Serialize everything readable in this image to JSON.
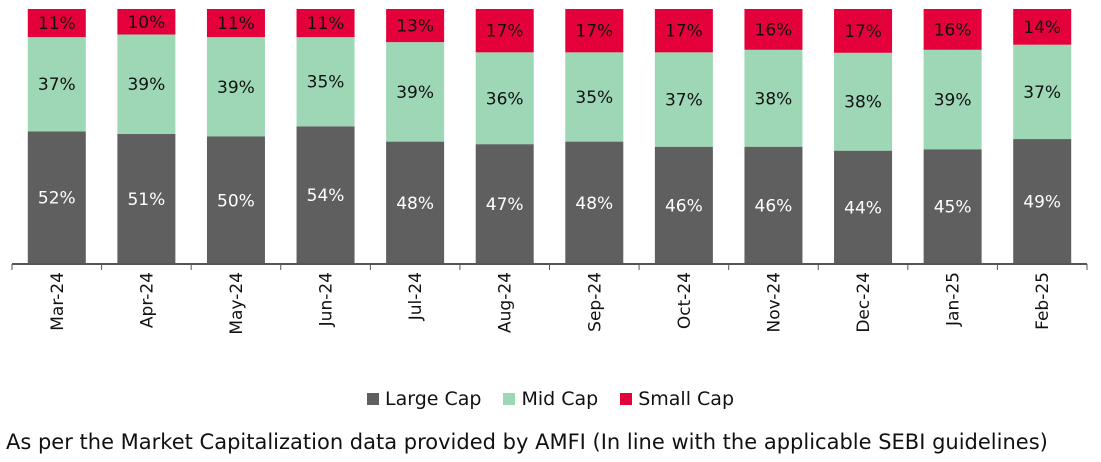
{
  "colors": {
    "large_cap": "#5f5f5f",
    "mid_cap": "#9dd7b6",
    "small_cap": "#e4003b",
    "axis": "#555555"
  },
  "legend": {
    "items": [
      {
        "label": "Large Cap",
        "color": "#5f5f5f"
      },
      {
        "label": "Mid Cap",
        "color": "#9dd7b6"
      },
      {
        "label": "Small Cap",
        "color": "#e4003b"
      }
    ]
  },
  "footnote": "As per the Market Capitalization data provided by AMFI (In line with the applicable SEBI guidelines)",
  "chart_data": {
    "type": "bar",
    "stacked": true,
    "categories": [
      "Mar-24",
      "Apr-24",
      "May-24",
      "Jun-24",
      "Jul-24",
      "Aug-24",
      "Sep-24",
      "Oct-24",
      "Nov-24",
      "Dec-24",
      "Jan-25",
      "Feb-25"
    ],
    "series": [
      {
        "name": "Large Cap",
        "values": [
          52,
          51,
          50,
          54,
          48,
          47,
          48,
          46,
          46,
          44,
          45,
          49
        ]
      },
      {
        "name": "Mid Cap",
        "values": [
          37,
          39,
          39,
          35,
          39,
          36,
          35,
          37,
          38,
          38,
          39,
          37
        ]
      },
      {
        "name": "Small Cap",
        "values": [
          11,
          10,
          11,
          11,
          13,
          17,
          17,
          17,
          16,
          17,
          16,
          14
        ]
      }
    ],
    "value_suffix": "%",
    "ylim": [
      0,
      100
    ],
    "grid": false,
    "legend_position": "bottom"
  }
}
